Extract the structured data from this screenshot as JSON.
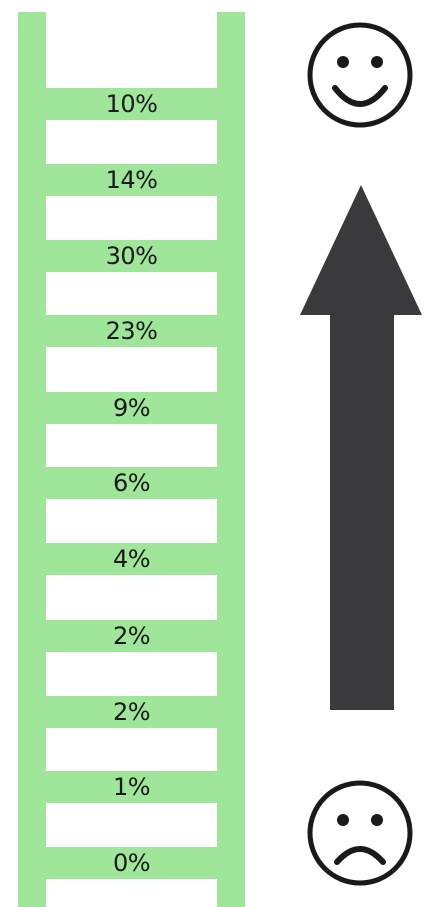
{
  "ladder": {
    "rungs": [
      {
        "label": "10%"
      },
      {
        "label": "14%"
      },
      {
        "label": "30%"
      },
      {
        "label": "23%"
      },
      {
        "label": "9%"
      },
      {
        "label": "6%"
      },
      {
        "label": "4%"
      },
      {
        "label": "2%"
      },
      {
        "label": "2%"
      },
      {
        "label": "1%"
      },
      {
        "label": "0%"
      }
    ]
  },
  "icons": {
    "top": "happy-face-icon",
    "middle": "up-arrow-icon",
    "bottom": "sad-face-icon"
  },
  "colors": {
    "ladder": "#9fe59a",
    "arrow": "#3a3a3c",
    "text": "#1a1a1a"
  }
}
